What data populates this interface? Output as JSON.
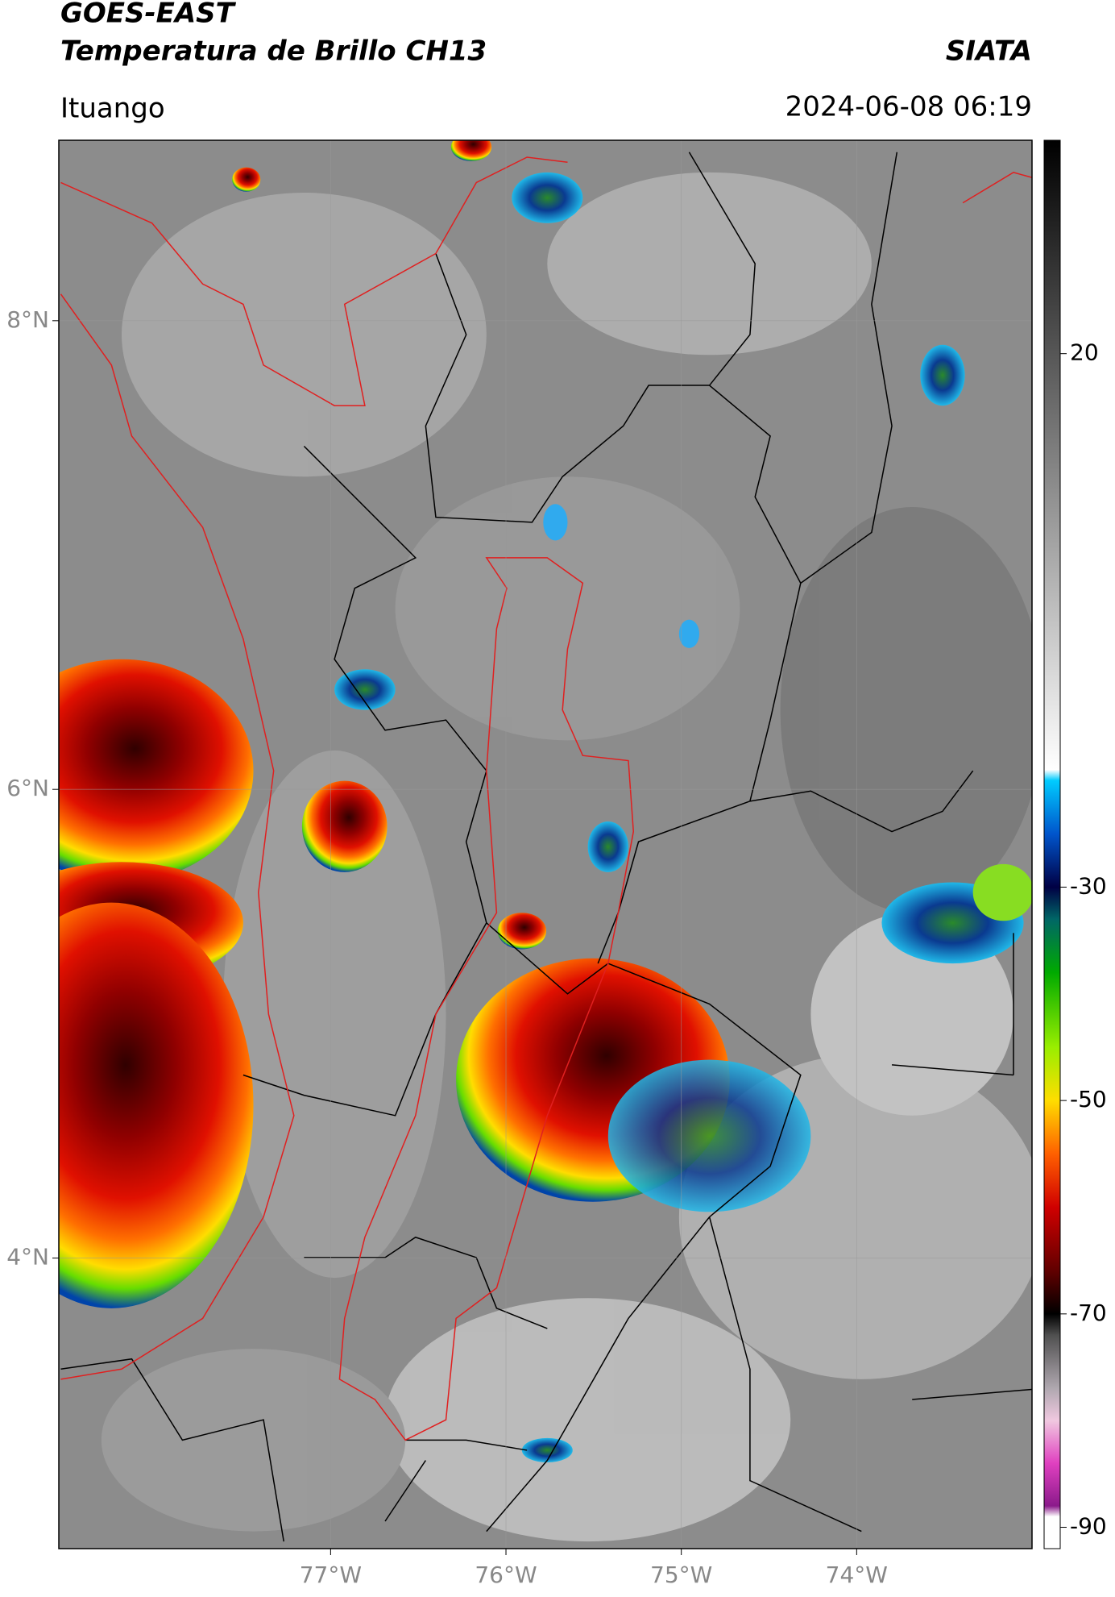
{
  "header": {
    "title": "GOES-EAST",
    "subtitle": "Temperatura de Brillo CH13",
    "brand": "SIATA",
    "location": "Ituango",
    "datetime": "2024-06-08 06:19"
  },
  "map": {
    "xlim": [
      -78.55,
      -73.0
    ],
    "ylim": [
      2.76,
      8.77
    ],
    "xticks": [
      {
        "value": -77,
        "label": "77°W"
      },
      {
        "value": -76,
        "label": "76°W"
      },
      {
        "value": -75,
        "label": "75°W"
      },
      {
        "value": -74,
        "label": "74°W"
      }
    ],
    "yticks": [
      {
        "value": 8,
        "label": "8°N"
      },
      {
        "value": 6,
        "label": "6°N"
      },
      {
        "value": 4,
        "label": "4°N"
      }
    ],
    "grid": true
  },
  "colorbar": {
    "lim": [
      -92,
      40
    ],
    "ticks": [
      20,
      -30,
      -50,
      -70,
      -90
    ],
    "stops": [
      {
        "value": -92,
        "color": "#ffffff"
      },
      {
        "value": -89,
        "color": "#ffffff"
      },
      {
        "value": -88,
        "color": "#8b1a8b"
      },
      {
        "value": -84,
        "color": "#e040c0"
      },
      {
        "value": -80,
        "color": "#f0c8e0"
      },
      {
        "value": -77,
        "color": "#b0a8b0"
      },
      {
        "value": -72,
        "color": "#505050"
      },
      {
        "value": -70,
        "color": "#000000"
      },
      {
        "value": -66,
        "color": "#600000"
      },
      {
        "value": -60,
        "color": "#d00000"
      },
      {
        "value": -55,
        "color": "#ff6000"
      },
      {
        "value": -50,
        "color": "#ffdd00"
      },
      {
        "value": -45,
        "color": "#99ee00"
      },
      {
        "value": -38,
        "color": "#00aa00"
      },
      {
        "value": -33,
        "color": "#006666"
      },
      {
        "value": -30,
        "color": "#000044"
      },
      {
        "value": -25,
        "color": "#0055cc"
      },
      {
        "value": -20,
        "color": "#00ccff"
      },
      {
        "value": -19,
        "color": "#ffffff"
      },
      {
        "value": 40,
        "color": "#000000"
      }
    ]
  }
}
